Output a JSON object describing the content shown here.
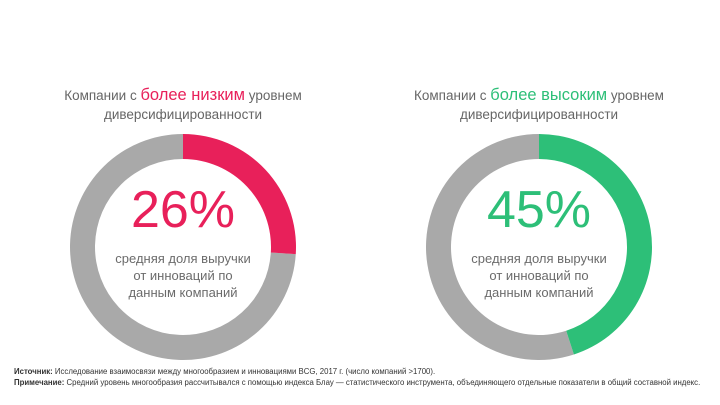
{
  "chart_data": [
    {
      "type": "pie",
      "title_prefix": "Компании с ",
      "title_highlight": "более низким",
      "title_suffix": " уровнем диверсифицированности",
      "value_label": "26%",
      "description": "средняя доля выручки от инноваций по данным компаний",
      "values": [
        26,
        74
      ],
      "colors": [
        "#e8205a",
        "#a9a9a9"
      ]
    },
    {
      "type": "pie",
      "title_prefix": "Компании с ",
      "title_highlight": "более высоким",
      "title_suffix": " уровнем диверсифицированности",
      "value_label": "45%",
      "description": "средняя доля выручки от инноваций по данным компаний",
      "values": [
        45,
        55
      ],
      "colors": [
        "#2dbf78",
        "#a9a9a9"
      ]
    }
  ],
  "footer": {
    "source_label": "Источник:",
    "source_text": " Исследование взаимосвязи между многообразием и инновациями BCG, 2017 г. (число компаний >1700).",
    "note_label": "Примечание:",
    "note_text": " Средний уровень многообразия рассчитывался с помощью индекса Блау — статистического инструмента, объединяющего отдельные показатели в общий составной индекс."
  }
}
